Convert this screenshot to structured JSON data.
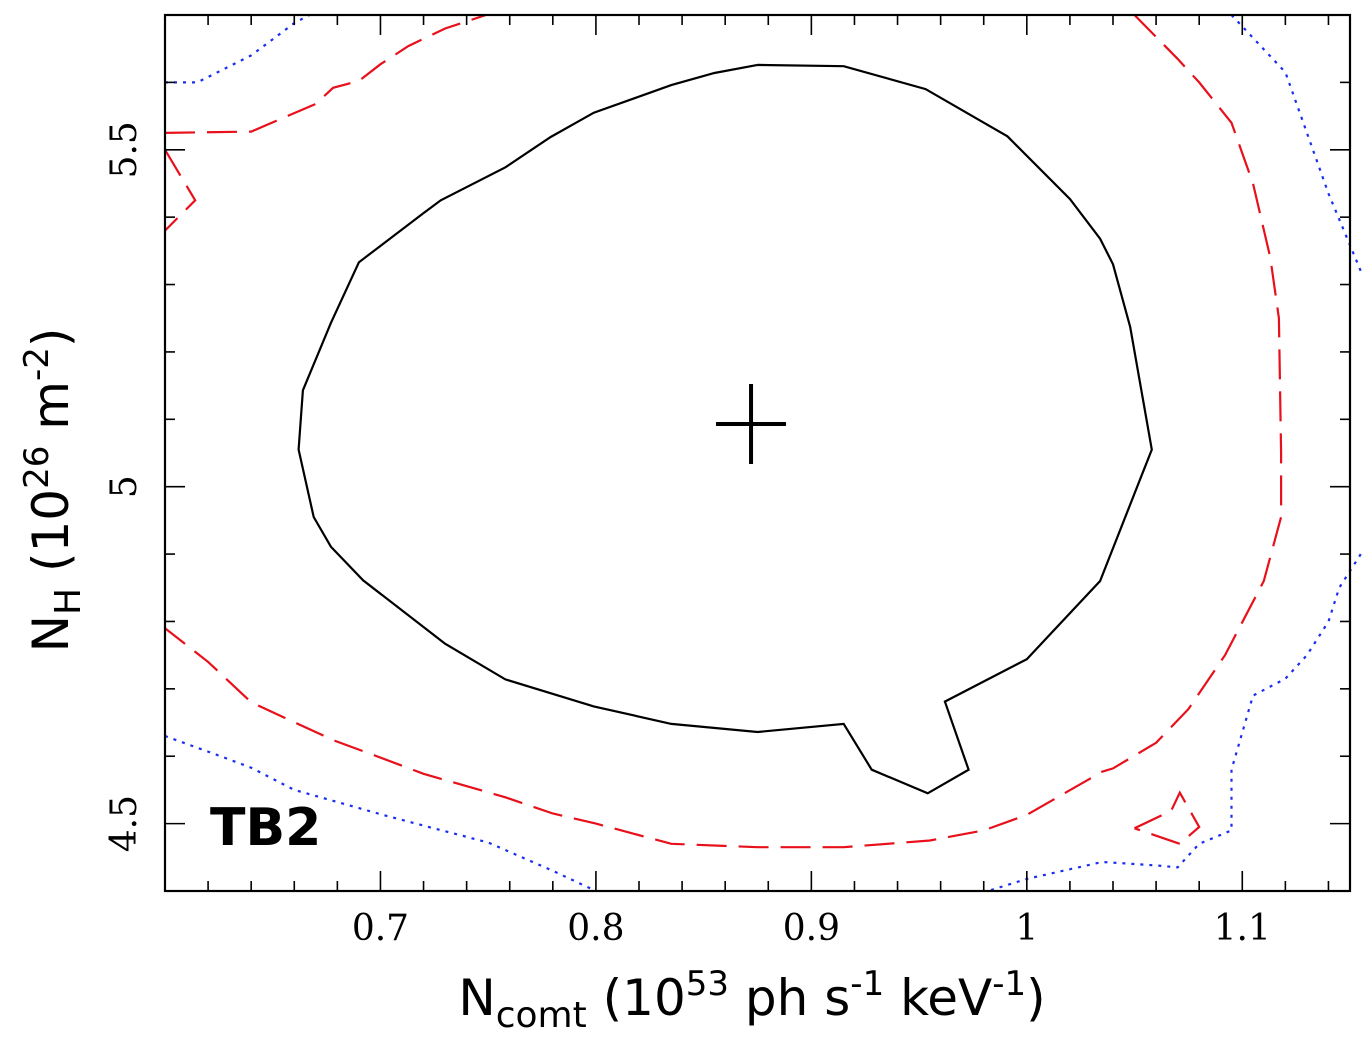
{
  "chart_data": {
    "type": "contour",
    "panel_label": "TB2",
    "xaxis": {
      "label_main": "N",
      "label_sub": "comt",
      "label_unit_prefix": " (10",
      "label_unit_exp": "53",
      "label_unit_mid": " ph s",
      "label_unit_exp2": "-1",
      "label_unit_mid2": " keV",
      "label_unit_exp3": "-1",
      "label_unit_suffix": ")",
      "range": [
        0.6,
        1.15
      ],
      "major_ticks": [
        0.7,
        0.8,
        0.9,
        1.0,
        1.1
      ],
      "tick_labels": [
        "0.7",
        "0.8",
        "0.9",
        "1",
        "1.1"
      ],
      "minor_step": 0.02
    },
    "yaxis": {
      "label_main": "N",
      "label_sub": "H",
      "label_unit_prefix": " (10",
      "label_unit_exp": "26",
      "label_unit_mid": " m",
      "label_unit_exp2": "-2",
      "label_unit_suffix": ")",
      "range": [
        4.4,
        5.7
      ],
      "major_ticks": [
        4.5,
        5.0,
        5.5
      ],
      "tick_labels": [
        "4.5",
        "5",
        "5.5"
      ],
      "minor_step": 0.1
    },
    "best_fit": {
      "x": 0.872,
      "y": 5.093
    },
    "contours": [
      {
        "level": "1",
        "color": "#000000",
        "style": "solid",
        "segments": [
          [
            [
              0.875,
              5.626
            ],
            [
              0.915,
              5.624
            ],
            [
              0.953,
              5.59
            ],
            [
              0.991,
              5.52
            ],
            [
              1.02,
              5.427
            ],
            [
              1.034,
              5.368
            ],
            [
              1.04,
              5.33
            ],
            [
              1.048,
              5.237
            ],
            [
              1.058,
              5.055
            ],
            [
              1.034,
              4.86
            ],
            [
              1.0,
              4.744
            ],
            [
              0.962,
              4.681
            ],
            [
              0.973,
              4.58
            ],
            [
              0.954,
              4.545
            ],
            [
              0.928,
              4.58
            ],
            [
              0.915,
              4.648
            ],
            [
              0.875,
              4.636
            ],
            [
              0.835,
              4.648
            ],
            [
              0.799,
              4.674
            ],
            [
              0.758,
              4.714
            ],
            [
              0.73,
              4.767
            ],
            [
              0.692,
              4.861
            ],
            [
              0.677,
              4.911
            ],
            [
              0.669,
              4.955
            ],
            [
              0.662,
              5.055
            ],
            [
              0.664,
              5.143
            ],
            [
              0.677,
              5.243
            ],
            [
              0.69,
              5.333
            ],
            [
              0.72,
              5.406
            ],
            [
              0.728,
              5.425
            ],
            [
              0.758,
              5.474
            ],
            [
              0.779,
              5.519
            ],
            [
              0.799,
              5.555
            ],
            [
              0.835,
              5.596
            ],
            [
              0.855,
              5.614
            ],
            [
              0.875,
              5.626
            ]
          ]
        ]
      },
      {
        "level": "2",
        "color": "#e8101a",
        "style": "dashed",
        "segments": [
          [
            [
              0.6,
              5.525
            ],
            [
              0.64,
              5.527
            ],
            [
              0.67,
              5.568
            ],
            [
              0.678,
              5.592
            ],
            [
              0.69,
              5.602
            ],
            [
              0.7,
              5.627
            ],
            [
              0.713,
              5.654
            ],
            [
              0.73,
              5.68
            ],
            [
              0.749,
              5.7
            ]
          ],
          [
            [
              0.6,
              5.5
            ],
            [
              0.614,
              5.425
            ],
            [
              0.6,
              5.38
            ]
          ],
          [
            [
              1.05,
              5.7
            ],
            [
              1.07,
              5.635
            ],
            [
              1.08,
              5.6
            ],
            [
              1.095,
              5.54
            ],
            [
              1.105,
              5.45
            ],
            [
              1.113,
              5.34
            ],
            [
              1.117,
              5.25
            ],
            [
              1.118,
              5.05
            ],
            [
              1.118,
              4.955
            ],
            [
              1.11,
              4.86
            ],
            [
              1.092,
              4.75
            ],
            [
              1.075,
              4.67
            ],
            [
              1.06,
              4.62
            ],
            [
              1.04,
              4.582
            ],
            [
              1.035,
              4.577
            ],
            [
              1.0,
              4.513
            ],
            [
              0.98,
              4.49
            ],
            [
              0.955,
              4.475
            ],
            [
              0.915,
              4.465
            ],
            [
              0.875,
              4.465
            ],
            [
              0.835,
              4.47
            ],
            [
              0.8,
              4.5
            ],
            [
              0.78,
              4.515
            ],
            [
              0.758,
              4.539
            ],
            [
              0.72,
              4.574
            ],
            [
              0.7,
              4.598
            ],
            [
              0.678,
              4.624
            ],
            [
              0.64,
              4.68
            ],
            [
              0.62,
              4.74
            ],
            [
              0.6,
              4.79
            ]
          ],
          [
            [
              1.05,
              4.493
            ],
            [
              1.067,
              4.519
            ],
            [
              1.071,
              4.546
            ],
            [
              1.08,
              4.495
            ],
            [
              1.071,
              4.47
            ],
            [
              1.05,
              4.493
            ]
          ]
        ]
      },
      {
        "level": "3",
        "color": "#1a2ef0",
        "style": "dotted",
        "segments": [
          [
            [
              0.6,
              5.6
            ],
            [
              0.615,
              5.6
            ],
            [
              0.64,
              5.64
            ],
            [
              0.66,
              5.688
            ],
            [
              0.667,
              5.7
            ]
          ],
          [
            [
              1.095,
              5.7
            ],
            [
              1.12,
              5.615
            ],
            [
              1.14,
              5.435
            ],
            [
              1.155,
              5.32
            ]
          ],
          [
            [
              1.155,
              4.9
            ],
            [
              1.145,
              4.85
            ],
            [
              1.14,
              4.8
            ],
            [
              1.13,
              4.75
            ],
            [
              1.12,
              4.715
            ],
            [
              1.105,
              4.69
            ],
            [
              1.095,
              4.58
            ],
            [
              1.095,
              4.49
            ],
            [
              1.08,
              4.47
            ],
            [
              1.07,
              4.435
            ],
            [
              1.06,
              4.438
            ],
            [
              1.035,
              4.443
            ],
            [
              1.0,
              4.418
            ],
            [
              0.982,
              4.4
            ]
          ],
          [
            [
              0.6,
              4.63
            ],
            [
              0.625,
              4.601
            ],
            [
              0.64,
              4.583
            ],
            [
              0.66,
              4.55
            ],
            [
              0.7,
              4.514
            ],
            [
              0.72,
              4.497
            ],
            [
              0.75,
              4.472
            ],
            [
              0.78,
              4.43
            ],
            [
              0.8,
              4.4
            ]
          ]
        ]
      }
    ]
  }
}
